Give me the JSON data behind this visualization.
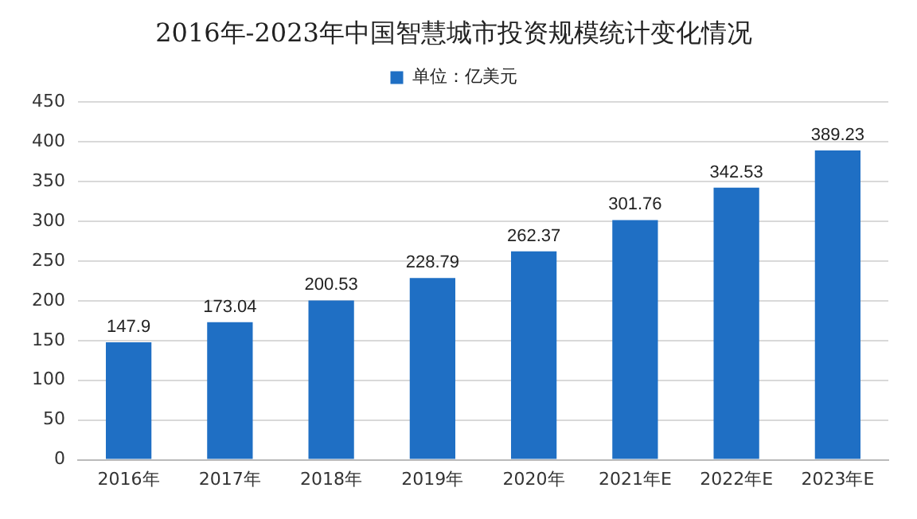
{
  "chart_data": {
    "type": "bar",
    "title": "2016年-2023年中国智慧城市投资规模统计变化情况",
    "categories": [
      "2016年",
      "2017年",
      "2018年",
      "2019年",
      "2020年",
      "2021年E",
      "2022年E",
      "2023年E"
    ],
    "series": [
      {
        "name": "单位：亿美元",
        "color": "#1f6fc4",
        "values": [
          147.9,
          173.04,
          200.53,
          228.79,
          262.37,
          301.76,
          342.53,
          389.23
        ]
      }
    ],
    "ylim": [
      0,
      450
    ],
    "yticks": [
      0,
      50,
      100,
      150,
      200,
      250,
      300,
      350,
      400,
      450
    ],
    "grid": "y",
    "legend": "top",
    "data_labels": true
  }
}
